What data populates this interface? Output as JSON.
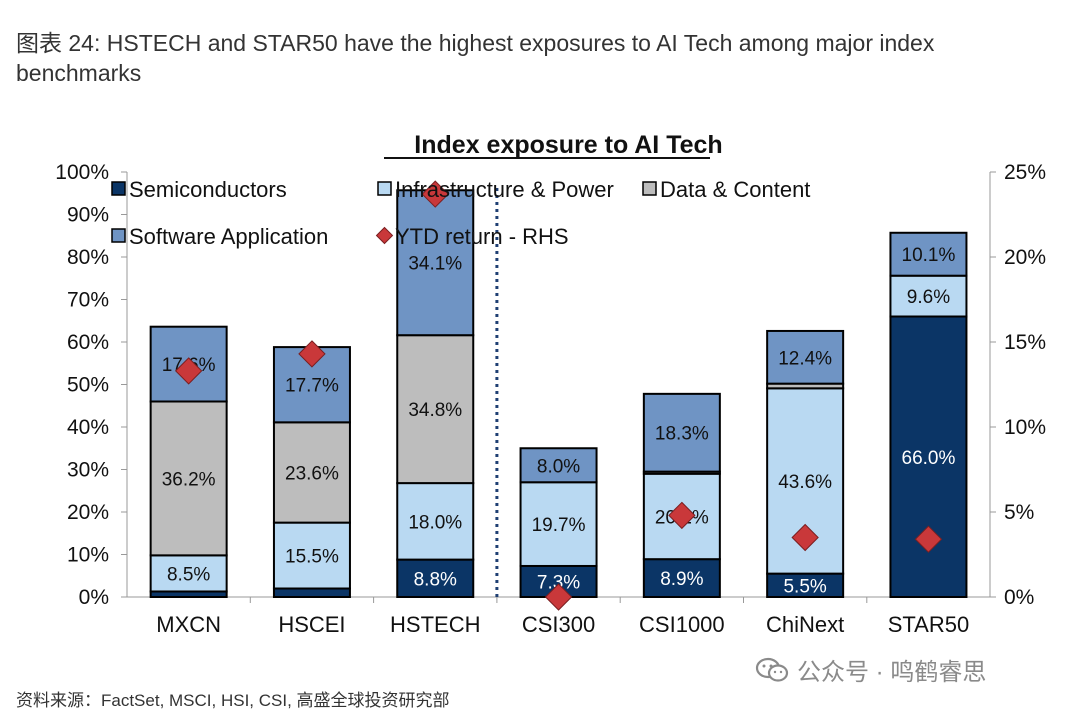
{
  "figure_title": "图表 24: HSTECH and STAR50 have the highest exposures to AI Tech among major index benchmarks",
  "source": "资料来源：FactSet, MSCI, HSI, CSI, 高盛全球投资研究部",
  "watermark": "公众号 · 鸣鹤睿思",
  "colors": {
    "semiconductors": "#0b3566",
    "infrastructure": "#b9d9f2",
    "data_content": "#bdbdbd",
    "software": "#6f94c4",
    "ytd": "#c9383a",
    "divider": "#1f3f73"
  },
  "chart_data": {
    "type": "bar",
    "stacked": true,
    "title": "Index exposure to AI Tech",
    "categories": [
      "MXCN",
      "HSCEI",
      "HSTECH",
      "CSI300",
      "CSI1000",
      "ChiNext",
      "STAR50"
    ],
    "series": [
      {
        "name": "Semiconductors",
        "key": "semiconductors",
        "values": [
          1.3,
          2.0,
          8.8,
          7.3,
          8.9,
          5.5,
          66.0
        ],
        "labels": [
          "",
          "",
          "8.8%",
          "7.3%",
          "8.9%",
          "5.5%",
          "66.0%"
        ]
      },
      {
        "name": "Infrastructure & Power",
        "key": "infrastructure",
        "values": [
          8.5,
          15.5,
          18.0,
          19.7,
          20.1,
          43.6,
          9.6
        ],
        "labels": [
          "8.5%",
          "15.5%",
          "18.0%",
          "19.7%",
          "20.1%",
          "43.6%",
          "9.6%"
        ]
      },
      {
        "name": "Data & Content",
        "key": "data_content",
        "values": [
          36.2,
          23.6,
          34.8,
          0.0,
          0.5,
          1.1,
          0.0
        ],
        "labels": [
          "36.2%",
          "23.6%",
          "34.8%",
          "",
          "",
          "",
          ""
        ]
      },
      {
        "name": "Software Application",
        "key": "software",
        "values": [
          17.6,
          17.7,
          34.1,
          8.0,
          18.3,
          12.4,
          10.1
        ],
        "labels": [
          "17.6%",
          "17.7%",
          "34.1%",
          "8.0%",
          "18.3%",
          "12.4%",
          "10.1%"
        ]
      }
    ],
    "ytd_return_rhs": {
      "name": "YTD return - RHS",
      "values": [
        13.3,
        14.3,
        23.7,
        0.0,
        4.8,
        3.5,
        3.4
      ]
    },
    "y_left": {
      "min": 0,
      "max": 100,
      "step": 10,
      "ticks": [
        "0%",
        "10%",
        "20%",
        "30%",
        "40%",
        "50%",
        "60%",
        "70%",
        "80%",
        "90%",
        "100%"
      ]
    },
    "y_right": {
      "min": 0,
      "max": 25,
      "step": 5,
      "ticks": [
        "0%",
        "5%",
        "10%",
        "15%",
        "20%",
        "25%"
      ]
    },
    "legend": [
      {
        "label": "Semiconductors",
        "key": "semiconductors",
        "shape": "square"
      },
      {
        "label": "Infrastructure & Power",
        "key": "infrastructure",
        "shape": "square"
      },
      {
        "label": "Data & Content",
        "key": "data_content",
        "shape": "square"
      },
      {
        "label": "Software Application",
        "key": "software",
        "shape": "square"
      },
      {
        "label": "YTD return - RHS",
        "key": "ytd",
        "shape": "diamond"
      }
    ],
    "divider_after": "HSTECH"
  }
}
